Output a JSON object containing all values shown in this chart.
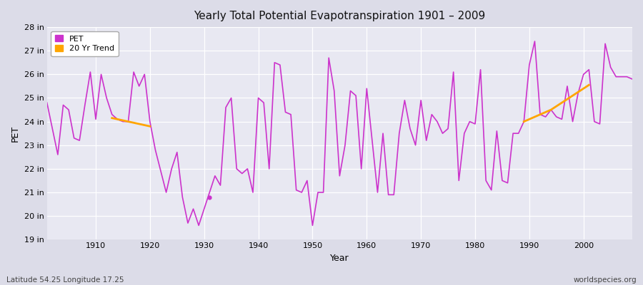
{
  "title": "Yearly Total Potential Evapotranspiration 1901 – 2009",
  "xlabel": "Year",
  "ylabel": "PET",
  "lat_lon_label": "Latitude 54.25 Longitude 17.25",
  "watermark": "worldspecies.org",
  "pet_color": "#cc33cc",
  "trend_color": "#ffa500",
  "bg_color": "#dcdce8",
  "plot_bg_color": "#e8e8f2",
  "ylim": [
    19,
    28
  ],
  "ytick_labels": [
    "19 in",
    "20 in",
    "21 in",
    "22 in",
    "23 in",
    "24 in",
    "25 in",
    "26 in",
    "27 in",
    "28 in"
  ],
  "ytick_values": [
    19,
    20,
    21,
    22,
    23,
    24,
    25,
    26,
    27,
    28
  ],
  "years": [
    1901,
    1902,
    1903,
    1904,
    1905,
    1906,
    1907,
    1908,
    1909,
    1910,
    1911,
    1912,
    1913,
    1914,
    1915,
    1916,
    1917,
    1918,
    1919,
    1920,
    1921,
    1922,
    1923,
    1924,
    1925,
    1926,
    1927,
    1928,
    1929,
    1930,
    1932,
    1933,
    1934,
    1935,
    1936,
    1937,
    1938,
    1939,
    1940,
    1941,
    1942,
    1943,
    1944,
    1945,
    1946,
    1947,
    1948,
    1949,
    1950,
    1951,
    1952,
    1953,
    1954,
    1955,
    1956,
    1957,
    1958,
    1959,
    1960,
    1961,
    1962,
    1963,
    1964,
    1965,
    1966,
    1967,
    1968,
    1969,
    1970,
    1971,
    1972,
    1973,
    1974,
    1975,
    1976,
    1977,
    1978,
    1979,
    1980,
    1981,
    1982,
    1983,
    1984,
    1985,
    1986,
    1987,
    1988,
    1989,
    1990,
    1991,
    1992,
    1993,
    1994,
    1995,
    1996,
    1997,
    1998,
    1999,
    2000,
    2001,
    2002,
    2003,
    2004,
    2005,
    2006,
    2007,
    2008,
    2009
  ],
  "pet_values": [
    24.8,
    23.7,
    22.6,
    24.7,
    24.5,
    23.3,
    23.2,
    24.7,
    26.1,
    24.1,
    26.0,
    25.0,
    24.3,
    24.1,
    24.0,
    24.0,
    26.1,
    25.5,
    26.0,
    24.0,
    22.8,
    21.9,
    21.0,
    22.0,
    22.7,
    20.8,
    19.7,
    20.3,
    19.6,
    20.3,
    21.7,
    21.3,
    24.6,
    25.0,
    22.0,
    21.8,
    22.0,
    21.0,
    25.0,
    24.8,
    22.0,
    26.5,
    26.4,
    24.4,
    24.3,
    21.1,
    21.0,
    21.5,
    19.6,
    21.0,
    21.0,
    26.7,
    25.3,
    21.7,
    23.0,
    25.3,
    25.1,
    22.0,
    25.4,
    23.2,
    21.0,
    23.5,
    20.9,
    20.9,
    23.5,
    24.9,
    23.7,
    23.0,
    24.9,
    23.2,
    24.3,
    24.0,
    23.5,
    23.7,
    26.1,
    21.5,
    23.5,
    24.0,
    23.9,
    26.2,
    21.5,
    21.1,
    23.6,
    21.5,
    21.4,
    23.5,
    23.5,
    24.0,
    26.4,
    27.4,
    24.3,
    24.2,
    24.5,
    24.2,
    24.1,
    25.5,
    24.0,
    25.2,
    26.0,
    26.2,
    24.0,
    23.9,
    27.3,
    26.3,
    25.9,
    25.9,
    25.9,
    25.8
  ],
  "dot_year": 1931,
  "dot_value": 20.8,
  "early_trend_years": [
    1913,
    1914,
    1915,
    1916,
    1917,
    1918,
    1919,
    1920
  ],
  "early_trend_values": [
    24.15,
    24.1,
    24.05,
    24.0,
    23.95,
    23.9,
    23.85,
    23.8
  ],
  "late_trend_years": [
    1989,
    1990,
    1991,
    1992,
    1993,
    1994,
    1995,
    1996,
    1997,
    1998,
    1999,
    2000,
    2001
  ],
  "late_trend_values": [
    24.0,
    24.1,
    24.2,
    24.3,
    24.4,
    24.5,
    24.65,
    24.8,
    24.95,
    25.1,
    25.25,
    25.4,
    25.55
  ]
}
